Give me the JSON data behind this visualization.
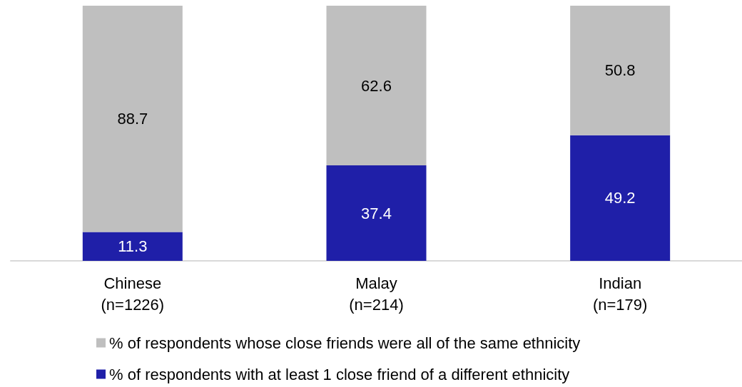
{
  "chart_data": {
    "type": "bar",
    "stacked": true,
    "data_labels": true,
    "legend": "bottom",
    "ylim": [
      0,
      100
    ],
    "categories": [
      "Chinese\n(n=1226)",
      "Malay\n(n=214)",
      "Indian\n(n=179)"
    ],
    "series": [
      {
        "name": "% of respondents with at least 1 close friend of a different ethnicity",
        "color": "#1f1fa8",
        "values": [
          11.3,
          37.4,
          49.2
        ]
      },
      {
        "name": "% of respondents whose close friends were all of the same ethnicity",
        "color": "#bfbfbf",
        "values": [
          88.7,
          62.6,
          50.8
        ]
      }
    ]
  }
}
